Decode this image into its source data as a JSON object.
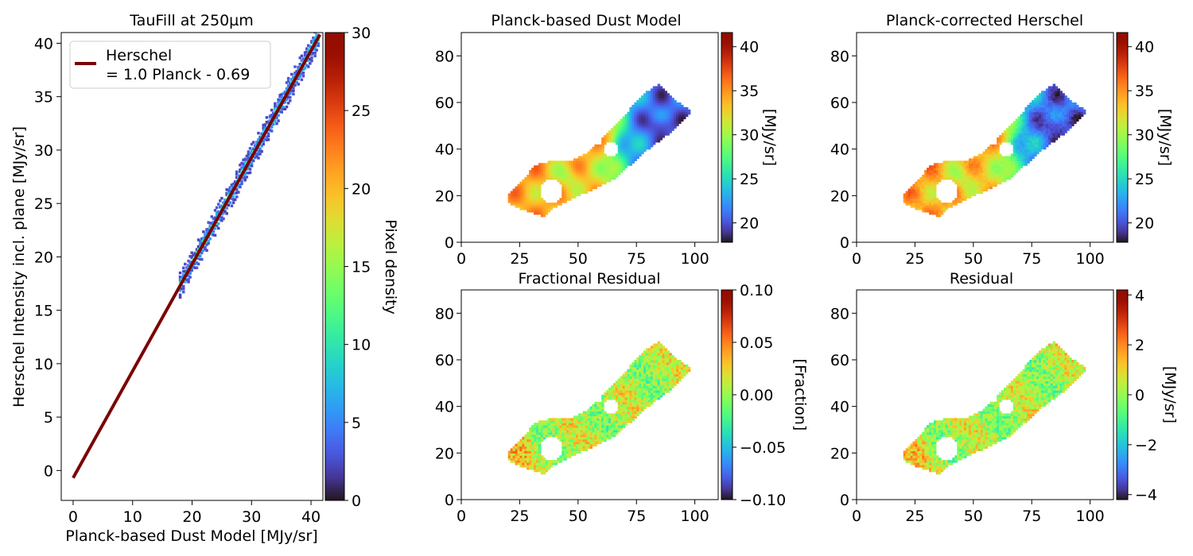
{
  "chart_data": [
    {
      "type": "heatmap",
      "title": "TauFill at 250µm",
      "xlabel": "Planck-based Dust Model [MJy/sr]",
      "ylabel": "Herschel Intensity incl. plane [MJy/sr]",
      "xlim": [
        -2,
        42
      ],
      "ylim": [
        -2.8,
        41
      ],
      "xticks": [
        0,
        10,
        20,
        30,
        40
      ],
      "yticks": [
        0,
        5,
        10,
        15,
        20,
        25,
        30,
        35,
        40
      ],
      "density_points": {
        "x_range": [
          18,
          41.5
        ],
        "slope": 1.0,
        "intercept": -0.69
      },
      "fit_line": {
        "slope": 1.0,
        "intercept": -0.69,
        "x_range": [
          0,
          41.5
        ],
        "color": "#7a0403"
      },
      "legend": {
        "placement": "top-left",
        "entries": [
          "Herschel",
          "= 1.0 Planck - 0.69"
        ]
      },
      "colorbar": {
        "label": "Pixel density",
        "min": 0,
        "max": 30,
        "ticks": [
          0,
          5,
          10,
          15,
          20,
          25,
          30
        ],
        "colormap": "turbo"
      }
    },
    {
      "type": "heatmap",
      "title": "Planck-based Dust Model",
      "xlim": [
        0,
        110
      ],
      "ylim": [
        0,
        90
      ],
      "xticks": [
        0,
        25,
        50,
        75,
        100
      ],
      "yticks": [
        0,
        20,
        40,
        60,
        80
      ],
      "colorbar": {
        "label": "[MJy/sr]",
        "min": 17.8,
        "max": 41.6,
        "ticks": [
          20,
          25,
          30,
          35,
          40
        ],
        "colormap": "turbo"
      },
      "map_range": [
        19,
        39
      ]
    },
    {
      "type": "heatmap",
      "title": "Planck-corrected Herschel",
      "xlim": [
        0,
        110
      ],
      "ylim": [
        0,
        90
      ],
      "xticks": [
        0,
        25,
        50,
        75,
        100
      ],
      "yticks": [
        0,
        20,
        40,
        60,
        80
      ],
      "colorbar": {
        "label": "[MJy/sr]",
        "min": 17.8,
        "max": 41.6,
        "ticks": [
          20,
          25,
          30,
          35,
          40
        ],
        "colormap": "turbo"
      },
      "map_range": [
        19,
        39
      ]
    },
    {
      "type": "heatmap",
      "title": "Fractional Residual",
      "xlim": [
        0,
        110
      ],
      "ylim": [
        0,
        90
      ],
      "xticks": [
        0,
        25,
        50,
        75,
        100
      ],
      "yticks": [
        0,
        20,
        40,
        60,
        80
      ],
      "colorbar": {
        "label": "[Fraction]",
        "min": -0.1,
        "max": 0.1,
        "ticks": [
          "0.10",
          "0.05",
          "0.00",
          "−0.05",
          "−0.10"
        ],
        "tick_values": [
          0.1,
          0.05,
          0,
          -0.05,
          -0.1
        ],
        "colormap": "turbo"
      },
      "map_range": [
        -0.035,
        0.045
      ]
    },
    {
      "type": "heatmap",
      "title": "Residual",
      "xlim": [
        0,
        110
      ],
      "ylim": [
        0,
        90
      ],
      "xticks": [
        0,
        25,
        50,
        75,
        100
      ],
      "yticks": [
        0,
        20,
        40,
        60,
        80
      ],
      "colorbar": {
        "label": "[MJy/sr]",
        "min": -4.2,
        "max": 4.2,
        "ticks": [
          "4",
          "2",
          "0",
          "−2",
          "−4"
        ],
        "tick_values": [
          4,
          2,
          0,
          -2,
          -4
        ],
        "colormap": "turbo"
      },
      "map_range": [
        -1.5,
        1.8
      ]
    }
  ]
}
